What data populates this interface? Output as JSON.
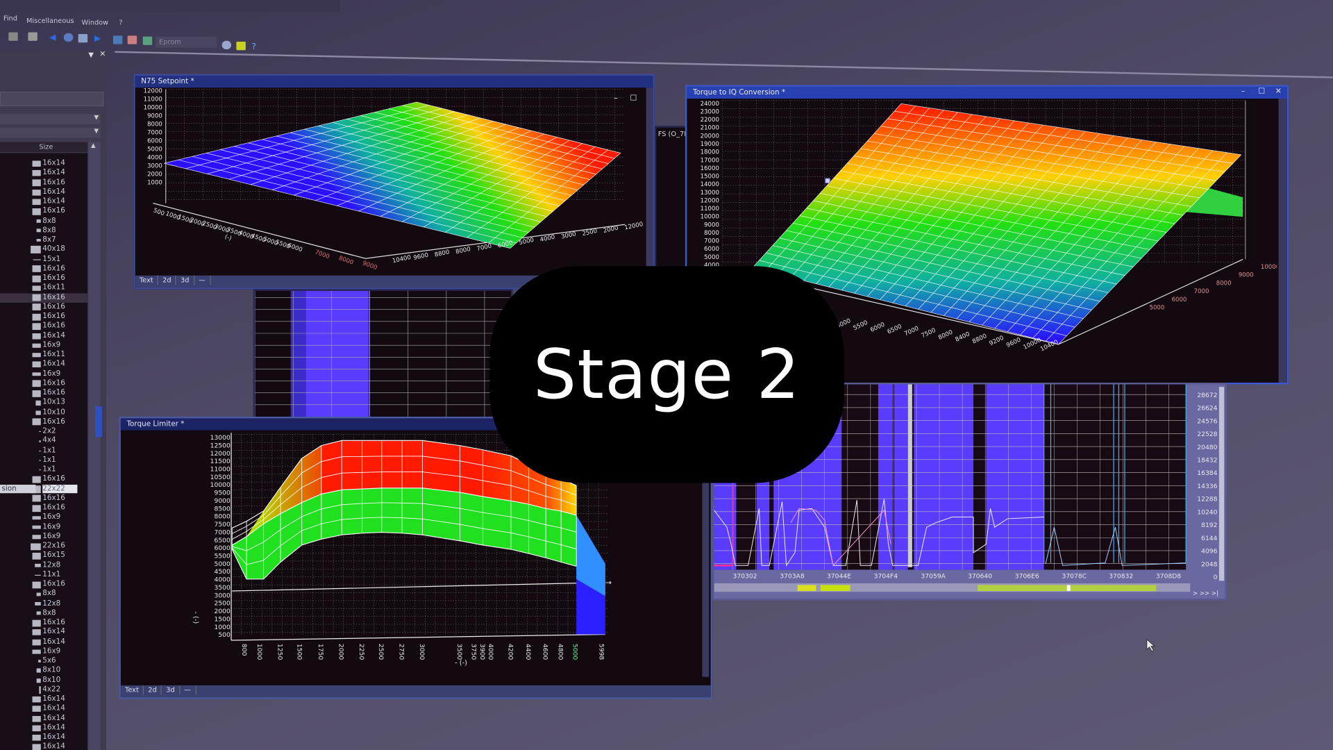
{
  "menu": {
    "items": [
      "Find",
      "Miscellaneous",
      "Window",
      "?"
    ]
  },
  "toolbar": {
    "eprom_label": "Eprom"
  },
  "left_panel": {
    "size_header": "Size",
    "selected_name_fragment": "sion",
    "sizes": [
      "16x14",
      "16x14",
      "16x16",
      "16x14",
      "16x14",
      "16x16",
      "8x8",
      "8x8",
      "8x7",
      "40x18",
      "15x1",
      "16x16",
      "16x16",
      "16x11",
      "16x16",
      "16x16",
      "16x16",
      "16x16",
      "16x14",
      "16x9",
      "16x11",
      "16x14",
      "16x9",
      "16x16",
      "16x16",
      "10x13",
      "10x10",
      "16x16",
      "2x2",
      "4x4",
      "1x1",
      "1x1",
      "1x1",
      "16x16",
      "22x22",
      "16x16",
      "16x16",
      "16x9",
      "16x9",
      "16x9",
      "22x16",
      "16x15",
      "12x8",
      "11x1",
      "16x16",
      "8x8",
      "12x8",
      "8x8",
      "16x16",
      "16x14",
      "16x14",
      "16x9",
      "5x6",
      "8x10",
      "8x10",
      "4x22",
      "16x14",
      "16x14",
      "16x14",
      "16x14",
      "16x14",
      "16x14"
    ]
  },
  "tabs": [
    "Text",
    "2d",
    "3d",
    "—"
  ],
  "n75": {
    "title": "N75 Setpoint *",
    "y_ticks": [
      "12000",
      "11000",
      "10000",
      "9000",
      "8000",
      "7000",
      "6000",
      "5000",
      "4000",
      "3000",
      "2000",
      "1000"
    ],
    "x_ticks": [
      "500",
      "1000",
      "1500",
      "2000",
      "2500",
      "3000",
      "3500",
      "4000",
      "4500",
      "5000",
      "5500",
      "6000",
      "7000",
      "8000",
      "9000"
    ],
    "z_ticks": [
      "10400",
      "9600",
      "8800",
      "8000",
      "7000",
      "6000",
      "5000",
      "4000",
      "3000",
      "2500",
      "2000",
      "12000"
    ],
    "axis_unit": "(-)"
  },
  "iq": {
    "title": "Torque to IQ Conversion *",
    "y_ticks": [
      "24000",
      "23000",
      "22000",
      "21000",
      "20000",
      "19000",
      "18000",
      "17000",
      "16000",
      "15000",
      "14000",
      "13000",
      "12000",
      "11000",
      "10000",
      "9000",
      "8000",
      "7000",
      "6000",
      "5000",
      "4000"
    ],
    "x_ticks": [
      "5000",
      "5500",
      "6000",
      "6500",
      "7000",
      "7500",
      "8000",
      "8400",
      "8800",
      "9200",
      "9600",
      "10000",
      "10400"
    ],
    "z_ticks": [
      "10000",
      "9000",
      "8000",
      "7000",
      "6000",
      "5000"
    ]
  },
  "behind_window": {
    "title_fragment": "FS (O_7F"
  },
  "torque_limiter": {
    "title": "Torque Limiter *",
    "y_ticks": [
      "13000",
      "12500",
      "12000",
      "11500",
      "11000",
      "10500",
      "10000",
      "9500",
      "9000",
      "8500",
      "8000",
      "7500",
      "7000",
      "6500",
      "6000",
      "5500",
      "5000",
      "4500",
      "4000",
      "3500",
      "3000",
      "2500",
      "2000",
      "1500",
      "1000",
      "500"
    ],
    "x_ticks": [
      "800",
      "1000",
      "1250",
      "1500",
      "1750",
      "2000",
      "2250",
      "2500",
      "2750",
      "3000",
      "3500",
      "3750",
      "3900",
      "4000",
      "4200",
      "4400",
      "4600",
      "4800",
      "5000",
      "5998"
    ],
    "x_label": "- (-)",
    "y_label": "- (-)"
  },
  "hex_view": {
    "y_ticks": [
      "28672",
      "26624",
      "24576",
      "22528",
      "20480",
      "18432",
      "16384",
      "14336",
      "12288",
      "10240",
      "8192",
      "6144",
      "4096",
      "2048",
      "0"
    ],
    "x_ticks": [
      "370302",
      "3703A8",
      "37044E",
      "3704F4",
      "37059A",
      "370640",
      "3706E6",
      "37078C",
      "370832",
      "3708D8"
    ],
    "nav": "> >> >|"
  },
  "overlay": {
    "text": "Stage 2"
  },
  "colors": {
    "window_title": "#223080",
    "surface_high": "#ff1a00",
    "surface_mid": "#22e010",
    "surface_low": "#2a10ff",
    "hex_region": "#5a3cff",
    "overlay_bg": "#000000"
  }
}
